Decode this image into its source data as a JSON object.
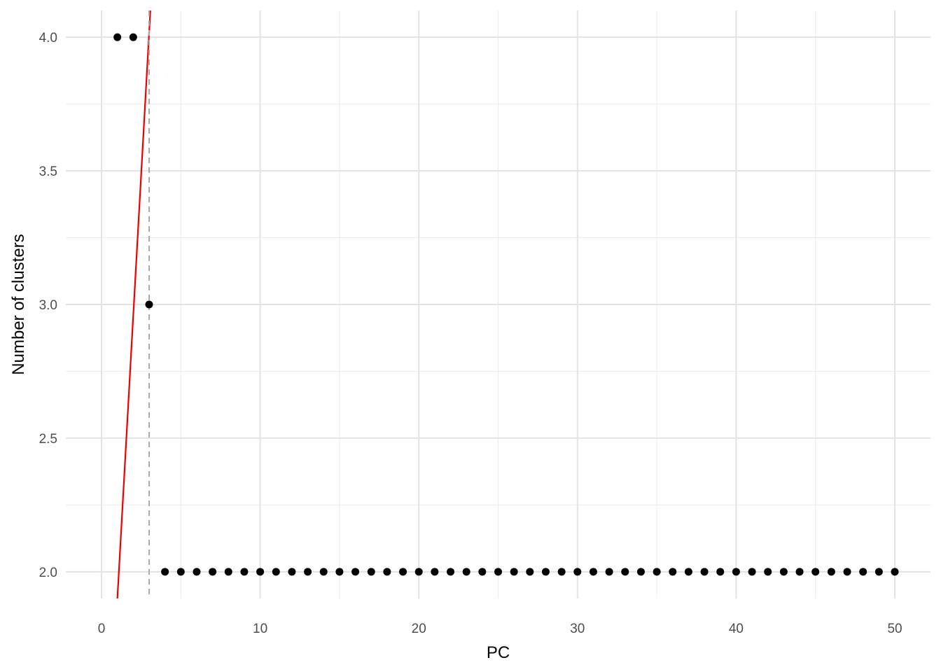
{
  "chart_data": {
    "type": "scatter",
    "title": "",
    "xlabel": "PC",
    "ylabel": "Number of clusters",
    "xlim": [
      0,
      50
    ],
    "ylim": [
      1.9,
      4.1
    ],
    "x_ticks": [
      0,
      10,
      20,
      30,
      40,
      50
    ],
    "x_tick_labels": [
      "0",
      "10",
      "20",
      "30",
      "40",
      "50"
    ],
    "x_minor_ticks": [
      5,
      15,
      25,
      35,
      45
    ],
    "y_ticks": [
      2.0,
      2.5,
      3.0,
      3.5,
      4.0
    ],
    "y_tick_labels": [
      "2.0",
      "2.5",
      "3.0",
      "3.5",
      "4.0"
    ],
    "y_minor_ticks": [
      2.25,
      2.75,
      3.25,
      3.75
    ],
    "grid": true,
    "series": [
      {
        "x": [
          1,
          2,
          3,
          4,
          5,
          6,
          7,
          8,
          9,
          10,
          11,
          12,
          13,
          14,
          15,
          16,
          17,
          18,
          19,
          20,
          21,
          22,
          23,
          24,
          25,
          26,
          27,
          28,
          29,
          30,
          31,
          32,
          33,
          34,
          35,
          36,
          37,
          38,
          39,
          40,
          41,
          42,
          43,
          44,
          45,
          46,
          47,
          48,
          49,
          50
        ],
        "y": [
          4,
          4,
          3,
          2,
          2,
          2,
          2,
          2,
          2,
          2,
          2,
          2,
          2,
          2,
          2,
          2,
          2,
          2,
          2,
          2,
          2,
          2,
          2,
          2,
          2,
          2,
          2,
          2,
          2,
          2,
          2,
          2,
          2,
          2,
          2,
          2,
          2,
          2,
          2,
          2,
          2,
          2,
          2,
          2,
          2,
          2,
          2,
          2,
          2,
          2
        ],
        "color": "#000000"
      }
    ],
    "reference_lines": [
      {
        "type": "line",
        "x1": 1,
        "y1": 1.9,
        "x2": 3.08,
        "y2": 4.1,
        "color": "#ee0000"
      },
      {
        "type": "vline",
        "x": 3,
        "dashed": true,
        "color": "#aaaaaa"
      }
    ]
  }
}
